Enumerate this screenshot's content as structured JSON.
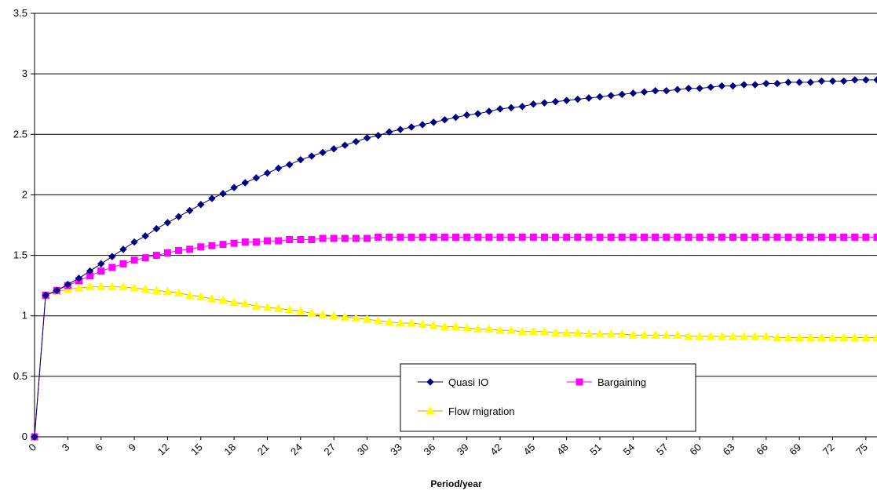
{
  "chart_data": {
    "type": "line",
    "title": "",
    "xlabel": "Period/year",
    "ylabel": "",
    "ylim": [
      0,
      3.5
    ],
    "yticks": [
      "0",
      "0.5",
      "1",
      "1.5",
      "2",
      "2.5",
      "3",
      "3.5"
    ],
    "xlim": [
      0,
      76
    ],
    "xticks": [
      "0",
      "3",
      "6",
      "9",
      "12",
      "15",
      "18",
      "21",
      "24",
      "27",
      "30",
      "33",
      "36",
      "39",
      "42",
      "45",
      "48",
      "51",
      "54",
      "57",
      "60",
      "63",
      "66",
      "69",
      "72",
      "75"
    ],
    "grid": "horizontal",
    "legend_position": "bottom-center",
    "series": [
      {
        "name": "Quasi IO",
        "color": "#000080",
        "marker": "diamond",
        "values": [
          0,
          1.17,
          1.21,
          1.26,
          1.31,
          1.37,
          1.43,
          1.49,
          1.55,
          1.61,
          1.66,
          1.72,
          1.77,
          1.82,
          1.87,
          1.92,
          1.97,
          2.01,
          2.06,
          2.1,
          2.14,
          2.18,
          2.22,
          2.25,
          2.29,
          2.32,
          2.35,
          2.38,
          2.41,
          2.44,
          2.47,
          2.49,
          2.52,
          2.54,
          2.56,
          2.58,
          2.6,
          2.62,
          2.64,
          2.66,
          2.67,
          2.69,
          2.71,
          2.72,
          2.73,
          2.75,
          2.76,
          2.77,
          2.78,
          2.79,
          2.8,
          2.81,
          2.82,
          2.83,
          2.84,
          2.85,
          2.86,
          2.86,
          2.87,
          2.88,
          2.88,
          2.89,
          2.9,
          2.9,
          2.91,
          2.91,
          2.92,
          2.92,
          2.93,
          2.93,
          2.93,
          2.94,
          2.94,
          2.94,
          2.95,
          2.95,
          2.95
        ]
      },
      {
        "name": "Bargaining",
        "color": "#ff00ff",
        "marker": "square",
        "values": [
          0,
          1.17,
          1.21,
          1.25,
          1.29,
          1.33,
          1.37,
          1.4,
          1.43,
          1.46,
          1.48,
          1.5,
          1.52,
          1.54,
          1.55,
          1.57,
          1.58,
          1.59,
          1.6,
          1.61,
          1.61,
          1.62,
          1.62,
          1.63,
          1.63,
          1.63,
          1.64,
          1.64,
          1.64,
          1.64,
          1.64,
          1.65,
          1.65,
          1.65,
          1.65,
          1.65,
          1.65,
          1.65,
          1.65,
          1.65,
          1.65,
          1.65,
          1.65,
          1.65,
          1.65,
          1.65,
          1.65,
          1.65,
          1.65,
          1.65,
          1.65,
          1.65,
          1.65,
          1.65,
          1.65,
          1.65,
          1.65,
          1.65,
          1.65,
          1.65,
          1.65,
          1.65,
          1.65,
          1.65,
          1.65,
          1.65,
          1.65,
          1.65,
          1.65,
          1.65,
          1.65,
          1.65,
          1.65,
          1.65,
          1.65,
          1.65,
          1.65
        ]
      },
      {
        "name": "Flow migration",
        "color": "#ffff00",
        "marker": "triangle",
        "values": [
          0,
          1.17,
          1.2,
          1.22,
          1.23,
          1.24,
          1.24,
          1.24,
          1.24,
          1.23,
          1.22,
          1.21,
          1.2,
          1.19,
          1.17,
          1.16,
          1.14,
          1.13,
          1.11,
          1.1,
          1.08,
          1.07,
          1.06,
          1.05,
          1.04,
          1.02,
          1.01,
          1.0,
          0.99,
          0.98,
          0.97,
          0.96,
          0.95,
          0.94,
          0.94,
          0.93,
          0.92,
          0.91,
          0.91,
          0.9,
          0.89,
          0.89,
          0.88,
          0.88,
          0.87,
          0.87,
          0.87,
          0.86,
          0.86,
          0.86,
          0.85,
          0.85,
          0.85,
          0.85,
          0.84,
          0.84,
          0.84,
          0.84,
          0.84,
          0.83,
          0.83,
          0.83,
          0.83,
          0.83,
          0.83,
          0.83,
          0.83,
          0.82,
          0.82,
          0.82,
          0.82,
          0.82,
          0.82,
          0.82,
          0.82,
          0.82,
          0.82
        ]
      }
    ]
  }
}
